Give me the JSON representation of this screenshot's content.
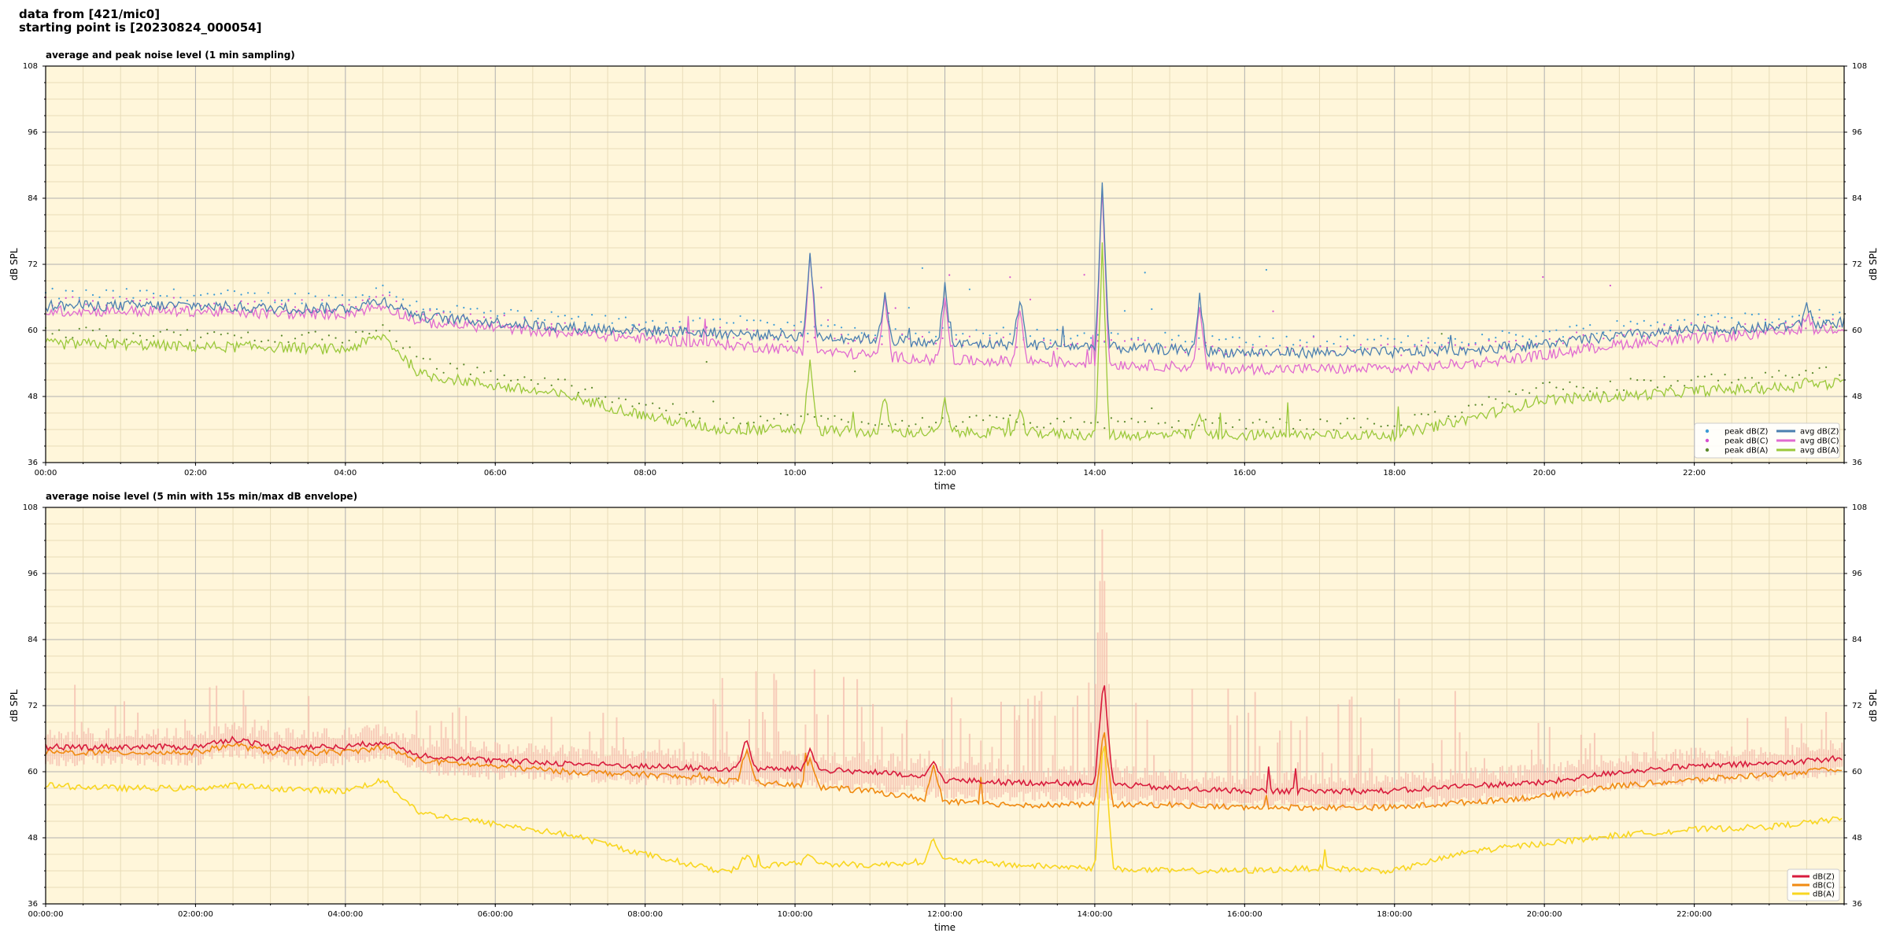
{
  "header": {
    "line1": "data from [421/mic0]",
    "line2": "starting point is [20230824_000054]"
  },
  "colors": {
    "background_plot": "#fff6da",
    "grid_major": "#b0b0b0",
    "grid_minor": "#e8dcb8",
    "avg_z": "#4a7fb0",
    "avg_c": "#e06ad0",
    "avg_a": "#9ac83a",
    "peak_z": "#3c9bd6",
    "peak_c": "#d64fd0",
    "peak_a": "#5c8a2c",
    "env_z": "#d81b3c",
    "env_c": "#f08a10",
    "env_a": "#f8d620",
    "envelope_fill": "#f4bcae"
  },
  "chart_data": [
    {
      "type": "line",
      "title": "average and peak noise level (1 min sampling)",
      "xlabel": "time",
      "ylabel": "dB SPL",
      "y2label": "dB SPL",
      "xlim": [
        0,
        24
      ],
      "ylim": [
        36,
        108
      ],
      "yticks": [
        36,
        48,
        60,
        72,
        84,
        96,
        108
      ],
      "xticks": [
        "00:00",
        "02:00",
        "04:00",
        "06:00",
        "08:00",
        "10:00",
        "12:00",
        "14:00",
        "16:00",
        "18:00",
        "20:00",
        "22:00"
      ],
      "grid": true,
      "legend_position": "bottom-right",
      "x_hours": [
        0,
        1,
        2,
        3,
        4,
        4.5,
        5,
        6,
        7,
        8,
        9,
        10,
        11,
        12,
        13,
        14,
        15,
        16,
        17,
        18,
        19,
        20,
        21,
        22,
        23,
        24
      ],
      "series": [
        {
          "name": "peak dB(Z)",
          "kind": "scatter",
          "color_key": "peak_z",
          "values": [
            66.5,
            66.5,
            66.5,
            66,
            66,
            67.5,
            64.5,
            63,
            62,
            61.5,
            61,
            60.5,
            60,
            59.5,
            59.5,
            59,
            58.5,
            58,
            58,
            58,
            58.5,
            59.5,
            61,
            62,
            62.5,
            63
          ]
        },
        {
          "name": "peak dB(C)",
          "kind": "scatter",
          "color_key": "peak_c",
          "values": [
            65,
            65,
            65,
            64.5,
            64.5,
            66,
            63,
            62,
            60.5,
            60,
            59.5,
            59,
            58.5,
            58,
            58,
            57.5,
            57,
            56.5,
            56.5,
            56.5,
            57,
            58,
            59.5,
            60.5,
            61,
            61.5
          ]
        },
        {
          "name": "peak dB(A)",
          "kind": "scatter",
          "color_key": "peak_a",
          "values": [
            59.5,
            59.5,
            59,
            59,
            58.5,
            61,
            54,
            52,
            50,
            46.5,
            44,
            44,
            43.5,
            43.5,
            43.5,
            43,
            43,
            43,
            43,
            43,
            46,
            49.5,
            50,
            51,
            51.5,
            52.5
          ]
        },
        {
          "name": "avg dB(Z)",
          "kind": "line",
          "color_key": "avg_z",
          "values": [
            64.5,
            64.5,
            64.5,
            64,
            64,
            65.5,
            62.5,
            61.5,
            60.5,
            60,
            59.5,
            59,
            58.5,
            57.5,
            57.5,
            57,
            56.5,
            56,
            56,
            56,
            56.5,
            57.5,
            59,
            60,
            60.5,
            61.5
          ]
        },
        {
          "name": "avg dB(C)",
          "kind": "line",
          "color_key": "avg_c",
          "values": [
            63.5,
            63.5,
            63.5,
            63,
            63,
            64.5,
            61.5,
            60.5,
            59.5,
            58.5,
            57.5,
            56.5,
            55.5,
            54.5,
            54.5,
            54,
            53.5,
            53,
            53,
            53,
            54,
            55.5,
            57.5,
            58.5,
            59.5,
            60.5
          ]
        },
        {
          "name": "avg dB(A)",
          "kind": "line",
          "color_key": "avg_a",
          "values": [
            57.5,
            57.5,
            57,
            57,
            56.5,
            59,
            52,
            50,
            48,
            44.5,
            42,
            42,
            41.5,
            41.5,
            41.5,
            41,
            41,
            41,
            41,
            41,
            44,
            47.5,
            48,
            49,
            49.5,
            50.5
          ]
        }
      ],
      "spikes": [
        {
          "x": 10.2,
          "z": 74,
          "c": 74,
          "a": 55
        },
        {
          "x": 11.2,
          "z": 67,
          "c": 66,
          "a": 48
        },
        {
          "x": 12.0,
          "z": 68,
          "c": 66,
          "a": 47
        },
        {
          "x": 13.0,
          "z": 66,
          "c": 64,
          "a": 45
        },
        {
          "x": 14.1,
          "z": 87,
          "c": 86,
          "a": 75
        },
        {
          "x": 15.4,
          "z": 66,
          "c": 64,
          "a": 45
        },
        {
          "x": 23.5,
          "z": 65,
          "c": 63,
          "a": 52
        }
      ],
      "legend": [
        "peak dB(Z)",
        "peak dB(C)",
        "peak dB(A)",
        "avg dB(Z)",
        "avg dB(C)",
        "avg dB(A)"
      ]
    },
    {
      "type": "line",
      "title": "average noise level (5 min with 15s min/max dB envelope)",
      "xlabel": "time",
      "ylabel": "dB SPL",
      "y2label": "dB SPL",
      "xlim": [
        0,
        24
      ],
      "ylim": [
        36,
        108
      ],
      "yticks": [
        36,
        48,
        60,
        72,
        84,
        96,
        108
      ],
      "xticks": [
        "00:00:00",
        "02:00:00",
        "04:00:00",
        "06:00:00",
        "08:00:00",
        "10:00:00",
        "12:00:00",
        "14:00:00",
        "16:00:00",
        "18:00:00",
        "20:00:00",
        "22:00:00"
      ],
      "grid": true,
      "legend_position": "bottom-right",
      "x_hours": [
        0,
        1,
        2,
        2.5,
        3,
        4,
        4.5,
        5,
        6,
        7,
        8,
        9,
        10,
        11,
        12,
        13,
        14,
        15,
        16,
        17,
        18,
        19,
        20,
        21,
        22,
        23,
        24
      ],
      "series": [
        {
          "name": "dB(Z)",
          "color_key": "env_z",
          "values": [
            64.5,
            64.5,
            64.5,
            66,
            64.5,
            64.5,
            65.5,
            63,
            62,
            61.5,
            61,
            60.5,
            60.5,
            60,
            58.5,
            58,
            58,
            57,
            56.5,
            56.5,
            56.5,
            57.5,
            58,
            60,
            61,
            61.5,
            62.5
          ]
        },
        {
          "name": "dB(C)",
          "color_key": "env_c",
          "values": [
            63.5,
            63.5,
            63.5,
            65,
            63.5,
            63.5,
            64.5,
            62,
            61,
            60,
            59.5,
            58.5,
            57.5,
            56.5,
            54.5,
            54,
            54,
            54,
            53.5,
            53.5,
            53.5,
            54.5,
            55.5,
            57.5,
            58.5,
            59.5,
            60.5
          ]
        },
        {
          "name": "dB(A)",
          "color_key": "env_a",
          "values": [
            57.5,
            57,
            57,
            57.5,
            57,
            56.5,
            58.5,
            52.5,
            50.5,
            48.5,
            45,
            42,
            43.5,
            43,
            44,
            43,
            42.5,
            42,
            42,
            42.5,
            42,
            45.5,
            47,
            48.5,
            49.5,
            50,
            51.5
          ]
        }
      ],
      "spikes": [
        {
          "x": 9.35,
          "z": 66,
          "c": 64,
          "a": 45
        },
        {
          "x": 10.2,
          "z": 64,
          "c": 63,
          "a": 45
        },
        {
          "x": 11.85,
          "z": 62,
          "c": 61,
          "a": 48
        },
        {
          "x": 14.12,
          "z": 77,
          "c": 68,
          "a": 67
        }
      ],
      "envelope_max_spike_db": 104,
      "legend": [
        "dB(Z)",
        "dB(C)",
        "dB(A)"
      ]
    }
  ]
}
